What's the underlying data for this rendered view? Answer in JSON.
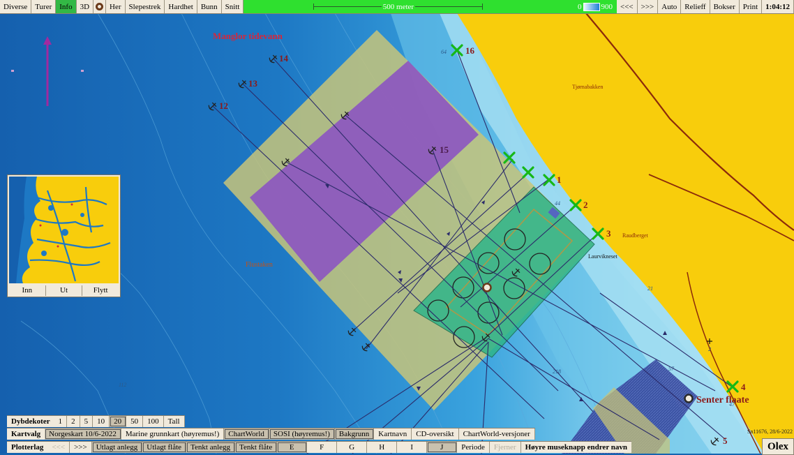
{
  "toolbar": {
    "left_items": [
      {
        "label": "Diverse",
        "active": false
      },
      {
        "label": "Turer",
        "active": false
      },
      {
        "label": "Info",
        "active": true
      },
      {
        "label": "3D",
        "active": false
      }
    ],
    "right_of_icon_items": [
      {
        "label": "Her"
      },
      {
        "label": "Slepestrek"
      },
      {
        "label": "Hardhet"
      },
      {
        "label": "Bunn"
      },
      {
        "label": "Snitt"
      }
    ],
    "scale_label": "500 meter",
    "depth_min": "0",
    "depth_max": "900",
    "right_items": [
      {
        "label": "<<<"
      },
      {
        "label": ">>>"
      },
      {
        "label": "Auto"
      },
      {
        "label": "Relieff"
      },
      {
        "label": "Bokser"
      },
      {
        "label": "Print"
      }
    ],
    "clock": "1:04:12"
  },
  "map": {
    "labels": {
      "title": "Manglor tidevann",
      "place_1": "Tjørnabakken",
      "place_2": "Raudberget",
      "place_3": "Laurvikneset",
      "place_4": "Flustaken",
      "senter": "Senter flaate"
    },
    "depth_labels": [
      {
        "text": "64"
      },
      {
        "text": "44"
      },
      {
        "text": "21"
      },
      {
        "text": "112"
      },
      {
        "text": "218"
      },
      {
        "text": "57"
      },
      {
        "text": "47"
      },
      {
        "text": "2"
      }
    ],
    "markers_x": [
      {
        "label": "16"
      },
      {
        "label": ""
      },
      {
        "label": ""
      },
      {
        "label": "1"
      },
      {
        "label": "2"
      },
      {
        "label": "3"
      },
      {
        "label": "4"
      }
    ],
    "anchors": [
      {
        "label": "14"
      },
      {
        "label": "13"
      },
      {
        "label": "12"
      },
      {
        "label": "15"
      },
      {
        "label": "5"
      }
    ],
    "colors": {
      "land": "#f8cd0c",
      "deep_water": "#1565b0",
      "shallow_water": "#9fdbf0",
      "rig_frame": "#c7c47a",
      "purple_zone": "#8a4fc4",
      "green_zone": "#2fb58a",
      "marker": "#22c422"
    }
  },
  "inset": {
    "buttons": [
      {
        "label": "Inn"
      },
      {
        "label": "Ut"
      },
      {
        "label": "Flytt"
      }
    ]
  },
  "dybdekoter": {
    "label": "Dybdekoter",
    "items": [
      {
        "label": "1",
        "selected": false
      },
      {
        "label": "2",
        "selected": false
      },
      {
        "label": "5",
        "selected": false
      },
      {
        "label": "10",
        "selected": false
      },
      {
        "label": "20",
        "selected": true
      },
      {
        "label": "50",
        "selected": false
      },
      {
        "label": "100",
        "selected": false
      },
      {
        "label": "Tall",
        "selected": false
      }
    ]
  },
  "kartvalg": {
    "label": "Kartvalg",
    "items": [
      {
        "label": "Norgeskart 10/6-2022",
        "selected": true
      },
      {
        "label": "Marine grunnkart (høyremus!)",
        "selected": false
      },
      {
        "label": "ChartWorld",
        "selected": true
      },
      {
        "label": "SOSI (høyremus!)",
        "selected": true
      },
      {
        "label": "Bakgrunn",
        "selected": true
      },
      {
        "label": "Kartnavn",
        "selected": false
      },
      {
        "label": "CD-oversikt",
        "selected": false
      },
      {
        "label": "ChartWorld-versjoner",
        "selected": false
      }
    ]
  },
  "plotterlag": {
    "label": "Plotterlag",
    "items": [
      {
        "label": "<<<",
        "state": "dim"
      },
      {
        "label": ">>>",
        "state": "normal"
      },
      {
        "label": "Utlagt anlegg",
        "state": "selected"
      },
      {
        "label": "Utlagt flåte",
        "state": "selected"
      },
      {
        "label": "Tenkt anlegg",
        "state": "selected"
      },
      {
        "label": "Tenkt flåte",
        "state": "selected"
      },
      {
        "label": "E",
        "state": "selected"
      },
      {
        "label": "F",
        "state": "normal"
      },
      {
        "label": "G",
        "state": "normal"
      },
      {
        "label": "H",
        "state": "normal"
      },
      {
        "label": "I",
        "state": "normal"
      },
      {
        "label": "J",
        "state": "selected"
      },
      {
        "label": "Periode",
        "state": "normal"
      },
      {
        "label": "Fjerner",
        "state": "dim"
      }
    ],
    "hint": "Høyre museknapp endrer navn"
  },
  "brand": "Olex",
  "credit": "Sn11676, 28/6-2022"
}
